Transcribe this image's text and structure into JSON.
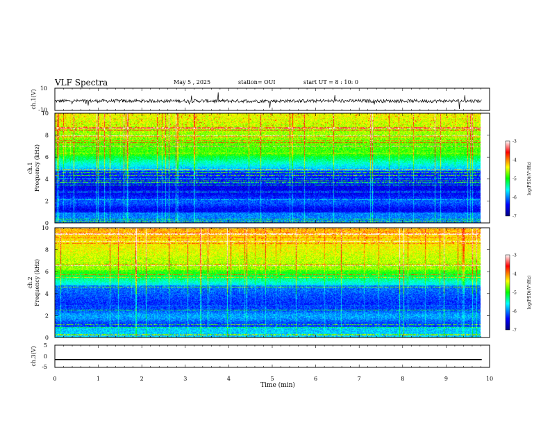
{
  "header": {
    "title": "VLF Spectra",
    "date": "May 5 , 2025",
    "station": "station= OUI",
    "start": "start UT = 8 : 10: 0"
  },
  "chart_data": [
    {
      "type": "line",
      "ylabel": "ch.1(V)",
      "ylim": [
        -10,
        10
      ],
      "yticks": [
        "10",
        "-10"
      ],
      "xlim": [
        0,
        10
      ],
      "color": "#000000"
    },
    {
      "type": "heatmap",
      "ylabel_top": "ch.1",
      "ylabel": "Frequency (kHz)",
      "ylim": [
        0,
        10
      ],
      "yticks": [
        "0",
        "2",
        "4",
        "6",
        "8",
        "10"
      ],
      "xlim": [
        0,
        10
      ],
      "colorbar": {
        "label": "log(PSD)(V²/Hz)",
        "range": [
          -7,
          -3
        ],
        "ticks": [
          "-3",
          "-4",
          "-5",
          "-6",
          "-7"
        ]
      }
    },
    {
      "type": "heatmap",
      "ylabel_top": "ch.2",
      "ylabel": "Frequency (kHz)",
      "ylim": [
        0,
        10
      ],
      "yticks": [
        "0",
        "2",
        "4",
        "6",
        "8",
        "10"
      ],
      "xlim": [
        0,
        10
      ],
      "colorbar": {
        "label": "log(PSD)(V²/Hz)",
        "range": [
          -7,
          -3
        ],
        "ticks": [
          "-3",
          "-4",
          "-5",
          "-6",
          "-7"
        ]
      }
    },
    {
      "type": "line",
      "ylabel": "ch.3(V)",
      "ylim": [
        -5,
        5
      ],
      "yticks": [
        "5",
        "0",
        "-5"
      ],
      "xlim": [
        0,
        10
      ],
      "values": [
        {
          "x": 0,
          "y": -1.5
        },
        {
          "x": 9.82,
          "y": -1.5
        }
      ],
      "color": "#000000"
    }
  ],
  "xaxis": {
    "label": "Time (min)",
    "ticks": [
      "0",
      "1",
      "2",
      "3",
      "4",
      "5",
      "6",
      "7",
      "8",
      "9",
      "10"
    ]
  }
}
